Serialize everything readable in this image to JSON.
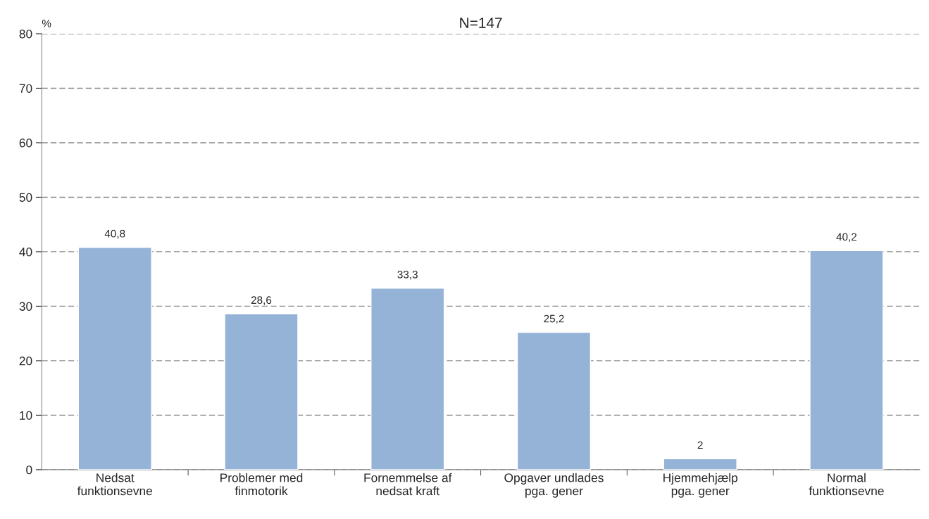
{
  "chart_data": {
    "type": "bar",
    "title": "N=147",
    "ylabel": "%",
    "categories": [
      "Nedsat\nfunktionsevne",
      "Problemer med\nfinmotorik",
      "Fornemmelse af\nnedsat kraft",
      "Opgaver undlades\npga. gener",
      "Hjemmehjælp\npga. gener",
      "Normal\nfunktionsevne"
    ],
    "values": [
      40.8,
      28.6,
      33.3,
      25.2,
      2,
      40.2
    ],
    "value_labels": [
      "40,8",
      "28,6",
      "33,3",
      "25,2",
      "2",
      "40,2"
    ],
    "color": "#95b3d7",
    "ylim": [
      0,
      80
    ],
    "yticks": [
      0,
      10,
      20,
      30,
      40,
      50,
      60,
      70,
      80
    ],
    "grid": "y",
    "line_style": "dashed"
  }
}
